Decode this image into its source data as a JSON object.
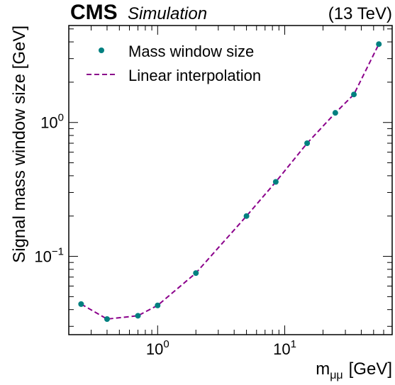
{
  "header": {
    "experiment": "CMS",
    "tag": "Simulation",
    "energy": "(13 TeV)"
  },
  "legend": {
    "position": "top-left",
    "markers_label": "Mass window size",
    "line_label": "Linear interpolation"
  },
  "colors": {
    "markers": "#008080",
    "line": "#8b008b"
  },
  "chart_data": {
    "type": "line",
    "x_scale": "log",
    "y_scale": "log",
    "xlabel_main": "m",
    "xlabel_sub": "μμ",
    "xlabel_unit": "[GeV]",
    "ylabel": "Signal mass window size [GeV]",
    "xlim": [
      0.2,
      70
    ],
    "ylim": [
      0.026,
      5.3
    ],
    "x_ticks": [
      {
        "value": 1,
        "base": "10",
        "exp": "0"
      },
      {
        "value": 10,
        "base": "10",
        "exp": "1"
      }
    ],
    "y_ticks": [
      {
        "value": 0.1,
        "base": "10",
        "exp": "−1"
      },
      {
        "value": 1,
        "base": "10",
        "exp": "0"
      }
    ],
    "series": [
      {
        "x": [
          0.25,
          0.4,
          0.7,
          1.0,
          2.0,
          5.0,
          8.5,
          15,
          25,
          35,
          55
        ],
        "y": [
          0.044,
          0.034,
          0.036,
          0.043,
          0.075,
          0.2,
          0.36,
          0.7,
          1.18,
          1.62,
          3.85
        ]
      }
    ]
  }
}
